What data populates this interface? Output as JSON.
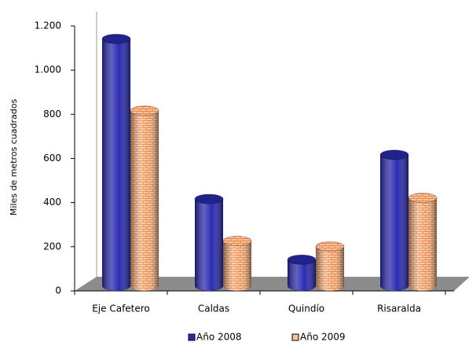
{
  "chart_data": {
    "type": "bar3d",
    "y_label": "Miles de metros cuadrados",
    "categories": [
      "Eje Cafetero",
      "Caldas",
      "Quindío",
      "Risaralda"
    ],
    "series": [
      {
        "name": "Año 2008",
        "color": "#2b2bb0",
        "values": [
          1120,
          395,
          120,
          595
        ]
      },
      {
        "name": "Año 2009",
        "color": "#f7c49c",
        "values": [
          795,
          205,
          180,
          400
        ]
      }
    ],
    "ylim": [
      0,
      1200
    ],
    "yticks": [
      0,
      200,
      400,
      600,
      800,
      {
        "value": 1000,
        "label": "1.000"
      },
      {
        "value": 1200,
        "label": "1.200"
      }
    ],
    "legend": "bottom"
  }
}
